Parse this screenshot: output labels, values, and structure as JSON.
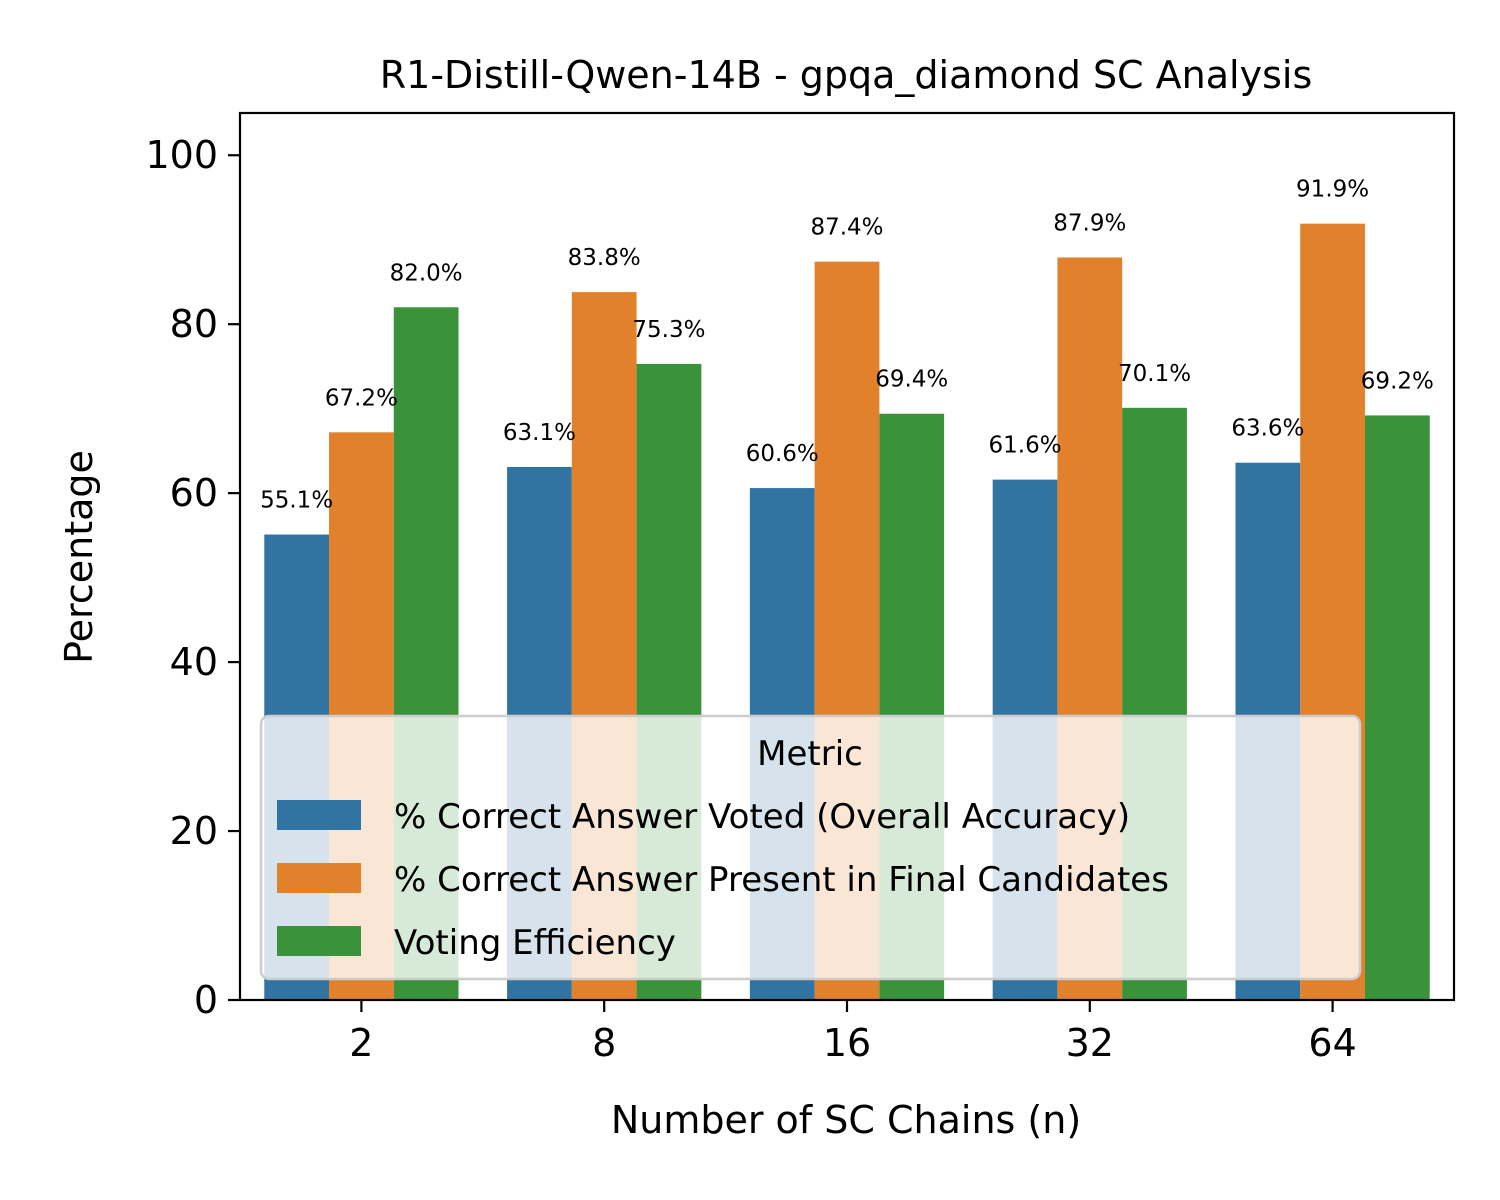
{
  "chart_data": {
    "type": "bar",
    "title": "R1-Distill-Qwen-14B - gpqa_diamond SC Analysis",
    "xlabel": "Number of SC Chains (n)",
    "ylabel": "Percentage",
    "categories": [
      "2",
      "8",
      "16",
      "32",
      "64"
    ],
    "ylim": [
      0,
      105
    ],
    "yticks": [
      "0",
      "20",
      "40",
      "60",
      "80",
      "100"
    ],
    "grid": false,
    "legend": {
      "title": "Metric",
      "placement": "lower-center"
    },
    "series": [
      {
        "name": "% Correct Answer Voted (Overall Accuracy)",
        "color": "#3274a1",
        "values": [
          55.1,
          63.1,
          60.6,
          61.6,
          63.6
        ],
        "labels": [
          "55.1%",
          "63.1%",
          "60.6%",
          "61.6%",
          "63.6%"
        ]
      },
      {
        "name": "% Correct Answer Present in Final Candidates",
        "color": "#e1812c",
        "values": [
          67.2,
          83.8,
          87.4,
          87.9,
          91.9
        ],
        "labels": [
          "67.2%",
          "83.8%",
          "87.4%",
          "87.9%",
          "91.9%"
        ]
      },
      {
        "name": "Voting Efficiency",
        "color": "#3a923a",
        "values": [
          82.0,
          75.3,
          69.4,
          70.1,
          69.2
        ],
        "labels": [
          "82.0%",
          "75.3%",
          "69.4%",
          "70.1%",
          "69.2%"
        ]
      }
    ]
  }
}
